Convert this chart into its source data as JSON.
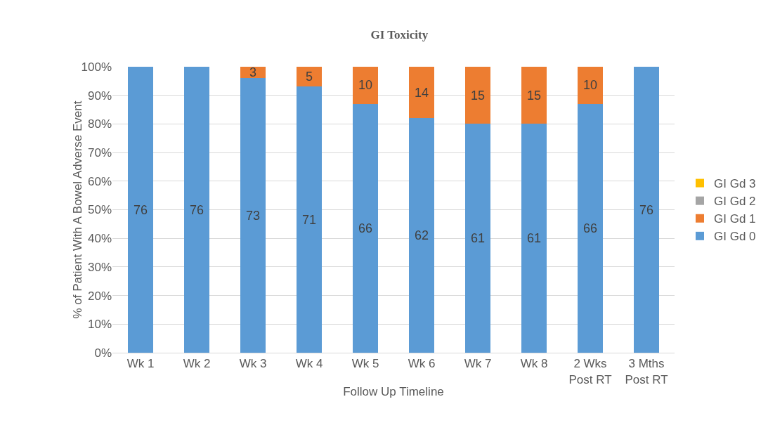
{
  "chart_data": {
    "type": "bar",
    "title": "GI Toxicity",
    "xlabel": "Follow Up Timeline",
    "ylabel": "% of Patient With A Bowel Adverse Event",
    "categories": [
      "Wk 1",
      "Wk 2",
      "Wk 3",
      "Wk 4",
      "Wk 5",
      "Wk 6",
      "Wk 7",
      "Wk 8",
      "2 Wks Post RT",
      "3 Mths Post RT"
    ],
    "stacked": true,
    "ylim": [
      0,
      100
    ],
    "yticks": [
      {
        "value": 0,
        "label": "0%"
      },
      {
        "value": 10,
        "label": "10%"
      },
      {
        "value": 20,
        "label": "20%"
      },
      {
        "value": 30,
        "label": "30%"
      },
      {
        "value": 40,
        "label": "40%"
      },
      {
        "value": 50,
        "label": "50%"
      },
      {
        "value": 60,
        "label": "60%"
      },
      {
        "value": 70,
        "label": "70%"
      },
      {
        "value": 80,
        "label": "80%"
      },
      {
        "value": 90,
        "label": "90%"
      },
      {
        "value": 100,
        "label": "100%"
      }
    ],
    "grid": "y",
    "legend": "right",
    "series": [
      {
        "name": "GI Gd 0",
        "color": "#5b9bd5",
        "values": [
          100,
          100,
          96,
          93,
          87,
          82,
          80,
          80,
          87,
          100
        ]
      },
      {
        "name": "GI Gd 1",
        "color": "#ed7d31",
        "values": [
          0,
          0,
          4,
          7,
          13,
          18,
          20,
          20,
          13,
          0
        ]
      },
      {
        "name": "GI Gd 2",
        "color": "#a5a5a5",
        "values": [
          0,
          0,
          0,
          0,
          0,
          0,
          0,
          0,
          0,
          0
        ]
      },
      {
        "name": "GI Gd 3",
        "color": "#ffc000",
        "values": [
          0,
          0,
          0,
          0,
          0,
          0,
          0,
          0,
          0,
          0
        ]
      }
    ],
    "annotations": [
      "76",
      "76",
      "73",
      "71",
      "66",
      "62",
      "61",
      "61",
      "66",
      "76",
      "3",
      "5",
      "10",
      "14",
      "15",
      "15",
      "10"
    ]
  }
}
